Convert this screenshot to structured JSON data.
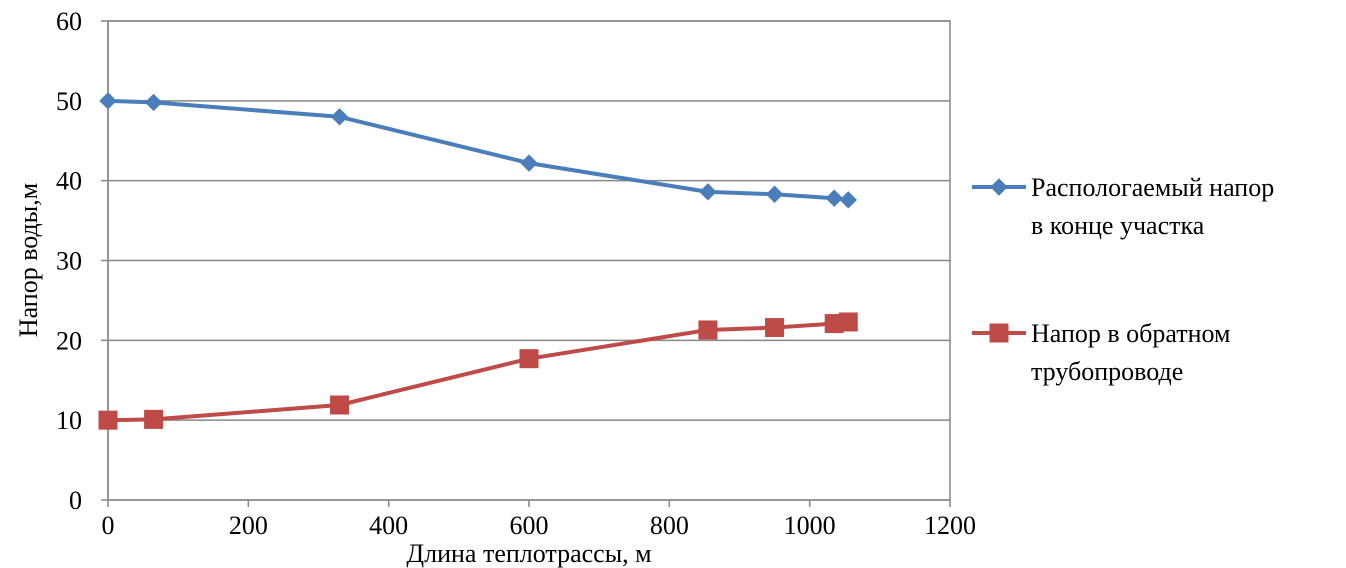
{
  "chart_data": {
    "type": "line",
    "title": "",
    "xlabel": "Длина теплотрассы, м",
    "ylabel": "Напор воды,м",
    "xlim": [
      0,
      1200
    ],
    "ylim": [
      0,
      60
    ],
    "xticks": [
      0,
      200,
      400,
      600,
      800,
      1000,
      1200
    ],
    "yticks": [
      0,
      10,
      20,
      30,
      40,
      50,
      60
    ],
    "grid": "horizontal",
    "legend_position": "right",
    "series": [
      {
        "name_lines": [
          "Распологаемый напор",
          "в конце участка"
        ],
        "color": "#4a7ebb",
        "marker": "diamond",
        "x": [
          0,
          65,
          330,
          600,
          855,
          950,
          1035,
          1055
        ],
        "y": [
          50,
          49.8,
          48,
          42.2,
          38.6,
          38.3,
          37.8,
          37.6
        ]
      },
      {
        "name_lines": [
          "Напор в обратном",
          "трубопроводе"
        ],
        "color": "#be4b48",
        "marker": "square",
        "x": [
          0,
          65,
          330,
          600,
          855,
          950,
          1035,
          1055
        ],
        "y": [
          10,
          10.1,
          11.9,
          17.7,
          21.3,
          21.6,
          22.1,
          22.3
        ]
      }
    ]
  }
}
